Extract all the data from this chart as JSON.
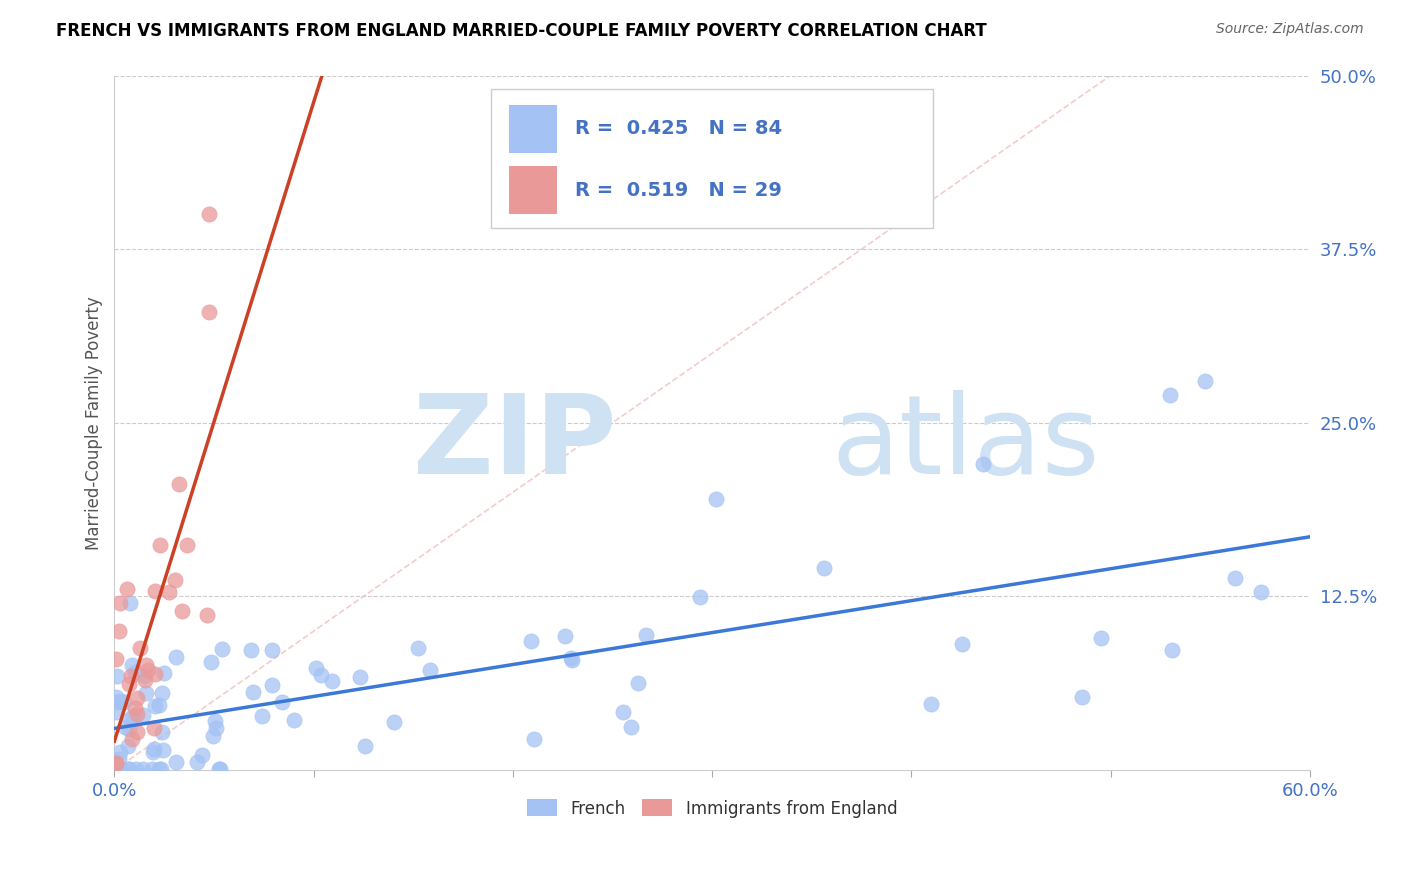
{
  "title": "FRENCH VS IMMIGRANTS FROM ENGLAND MARRIED-COUPLE FAMILY POVERTY CORRELATION CHART",
  "source": "Source: ZipAtlas.com",
  "ylabel": "Married-Couple Family Poverty",
  "xlim": [
    0.0,
    0.6
  ],
  "ylim": [
    0.0,
    0.5
  ],
  "xtick_positions": [
    0.0,
    0.1,
    0.2,
    0.3,
    0.4,
    0.5,
    0.6
  ],
  "xticklabels": [
    "0.0%",
    "",
    "",
    "",
    "",
    "",
    "60.0%"
  ],
  "ytick_positions": [
    0.0,
    0.125,
    0.25,
    0.375,
    0.5
  ],
  "yticklabels": [
    "",
    "12.5%",
    "25.0%",
    "37.5%",
    "50.0%"
  ],
  "french_R": 0.425,
  "french_N": 84,
  "england_R": 0.519,
  "england_N": 29,
  "french_color": "#a4c2f4",
  "england_color": "#ea9999",
  "french_line_color": "#3c78d8",
  "england_line_color": "#cc4125",
  "diag_color": "#f4cccc",
  "watermark_color": "#cfe2f3",
  "grid_color": "#cccccc",
  "axis_color": "#4472c4",
  "legend_text_color": "#4472c4",
  "title_color": "#000000",
  "source_color": "#666666"
}
